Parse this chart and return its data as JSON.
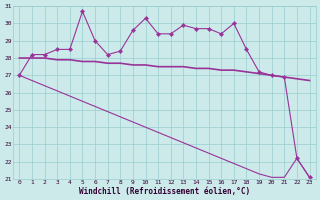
{
  "x": [
    0,
    1,
    2,
    3,
    4,
    5,
    6,
    7,
    8,
    9,
    10,
    11,
    12,
    13,
    14,
    15,
    16,
    17,
    18,
    19,
    20,
    21,
    22,
    23
  ],
  "line_markers": [
    27.0,
    28.2,
    28.2,
    28.5,
    28.5,
    30.7,
    29.0,
    28.2,
    28.4,
    29.6,
    30.3,
    29.4,
    29.4,
    29.9,
    29.7,
    29.7,
    29.4,
    30.0,
    28.5,
    27.2,
    27.0,
    26.9,
    22.2,
    21.1
  ],
  "line_smooth": [
    28.0,
    28.0,
    28.0,
    27.9,
    27.9,
    27.8,
    27.8,
    27.7,
    27.7,
    27.6,
    27.6,
    27.5,
    27.5,
    27.5,
    27.4,
    27.4,
    27.3,
    27.3,
    27.2,
    27.1,
    27.0,
    26.9,
    26.8,
    26.7
  ],
  "line_diagonal": [
    27.0,
    26.7,
    26.4,
    26.1,
    25.8,
    25.5,
    25.2,
    24.9,
    24.6,
    24.3,
    24.0,
    23.7,
    23.4,
    23.1,
    22.8,
    22.5,
    22.2,
    21.9,
    21.6,
    21.3,
    21.1,
    21.1,
    22.2,
    21.1
  ],
  "color": "#993399",
  "bg_color": "#cceaea",
  "grid_color": "#99cccc",
  "xlabel": "Windchill (Refroidissement éolien,°C)",
  "ylim": [
    21,
    31
  ],
  "xlim": [
    -0.5,
    23.5
  ],
  "yticks": [
    21,
    22,
    23,
    24,
    25,
    26,
    27,
    28,
    29,
    30,
    31
  ],
  "xticks": [
    0,
    1,
    2,
    3,
    4,
    5,
    6,
    7,
    8,
    9,
    10,
    11,
    12,
    13,
    14,
    15,
    16,
    17,
    18,
    19,
    20,
    21,
    22,
    23
  ],
  "marker_style": "D",
  "lw_markers": 0.8,
  "lw_smooth": 1.2,
  "lw_diagonal": 0.8,
  "marker_size": 2.2,
  "tick_fontsize": 4.5,
  "label_fontsize": 5.5
}
